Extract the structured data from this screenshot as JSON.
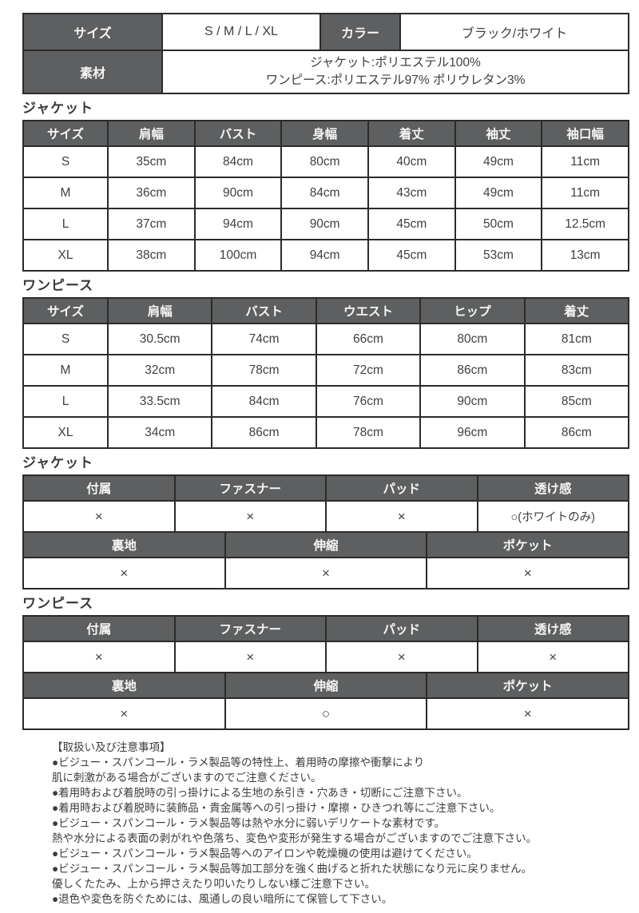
{
  "palette": {
    "header_bg": "#5d5f60",
    "header_text": "#f6f6f6",
    "border": "#2b2b2b",
    "body_text": "#3f3f3f",
    "background": "#ffffff"
  },
  "summary": {
    "size_label": "サイズ",
    "size_value": "S / M / L / XL",
    "color_label": "カラー",
    "color_value": "ブラック/ホワイト",
    "material_label": "素材",
    "material_line1": "ジャケット:ポリエステル100%",
    "material_line2": "ワンピース:ポリエステル97% ポリウレタン3%"
  },
  "jacket_size": {
    "section_title": "ジャケット",
    "columns": [
      "サイズ",
      "肩幅",
      "バスト",
      "身幅",
      "着丈",
      "袖丈",
      "袖口幅"
    ],
    "rows": [
      [
        "S",
        "35cm",
        "84cm",
        "80cm",
        "40cm",
        "49cm",
        "11cm"
      ],
      [
        "M",
        "36cm",
        "90cm",
        "84cm",
        "43cm",
        "49cm",
        "11cm"
      ],
      [
        "L",
        "37cm",
        "94cm",
        "90cm",
        "45cm",
        "50cm",
        "12.5cm"
      ],
      [
        "XL",
        "38cm",
        "100cm",
        "94cm",
        "45cm",
        "53cm",
        "13cm"
      ]
    ]
  },
  "onepiece_size": {
    "section_title": "ワンピース",
    "columns": [
      "サイズ",
      "肩幅",
      "バスト",
      "ウエスト",
      "ヒップ",
      "着丈"
    ],
    "rows": [
      [
        "S",
        "30.5cm",
        "74cm",
        "66cm",
        "80cm",
        "81cm"
      ],
      [
        "M",
        "32cm",
        "78cm",
        "72cm",
        "86cm",
        "83cm"
      ],
      [
        "L",
        "33.5cm",
        "84cm",
        "76cm",
        "90cm",
        "85cm"
      ],
      [
        "XL",
        "34cm",
        "86cm",
        "78cm",
        "96cm",
        "86cm"
      ]
    ]
  },
  "jacket_features": {
    "section_title": "ジャケット",
    "row1_headers": [
      "付属",
      "ファスナー",
      "パッド",
      "透け感"
    ],
    "row1_values": [
      "×",
      "×",
      "×",
      "○(ホワイトのみ)"
    ],
    "row2_headers": [
      "裏地",
      "伸縮",
      "ポケット"
    ],
    "row2_values": [
      "×",
      "×",
      "×"
    ]
  },
  "onepiece_features": {
    "section_title": "ワンピース",
    "row1_headers": [
      "付属",
      "ファスナー",
      "パッド",
      "透け感"
    ],
    "row1_values": [
      "×",
      "×",
      "×",
      "×"
    ],
    "row2_headers": [
      "裏地",
      "伸縮",
      "ポケット"
    ],
    "row2_values": [
      "×",
      "○",
      "×"
    ]
  },
  "notes": {
    "title": "【取扱い及び注意事項】",
    "lines": [
      "●ビジュー・スパンコール・ラメ製品等の特性上、着用時の摩擦や衝撃により",
      "肌に刺激がある場合がございますのでご注意ください。",
      "●着用時および着脱時の引っ掛けによる生地の糸引き・穴あき・切断にご注意下さい。",
      "●着用時および着脱時に装飾品・貴金属等への引っ掛け・摩擦・ひきつれ等にご注意下さい。",
      "●ビジュー・スパンコール・ラメ製品等は熱や水分に弱いデリケートな素材です。",
      "熱や水分による表面の剥がれや色落ち、変色や変形が発生する場合がございますのでご注意下さい。",
      "●ビジュー・スパンコール・ラメ製品等へのアイロンや乾燥機の使用は避けてください。",
      "●ビジュー・スパンコール・ラメ製品等加工部分を強く曲げると折れた状態になり元に戻りません。",
      "優しくたたみ、上から押さえたり叩いたりしない様ご注意下さい。",
      "●退色や変色を防ぐためには、風通しの良い暗所にて保管して下さい。"
    ]
  }
}
